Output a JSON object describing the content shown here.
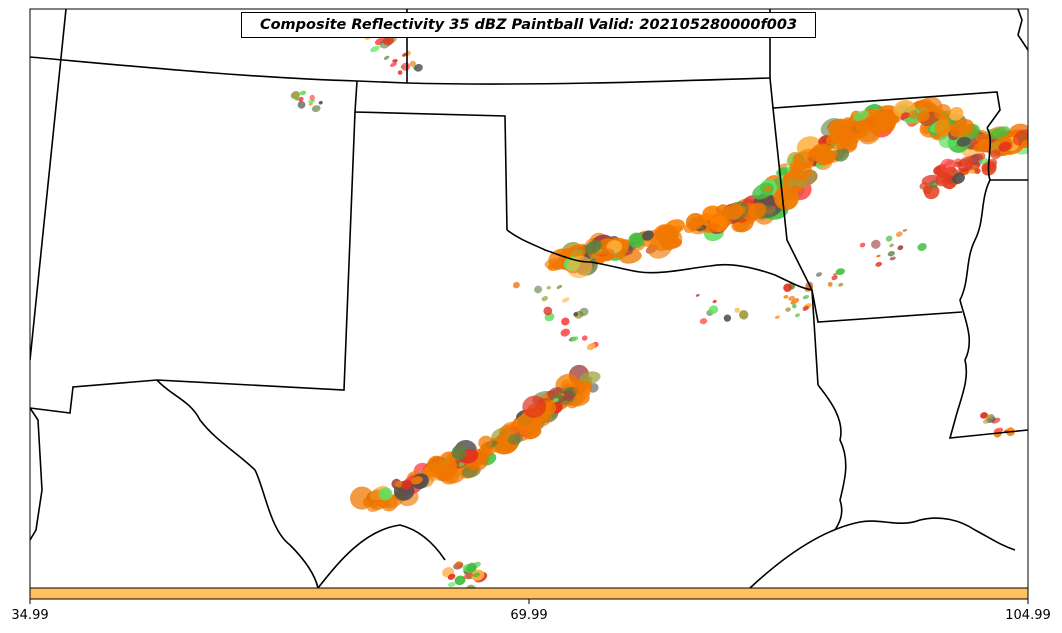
{
  "title": "Composite Reflectivity 35 dBZ Paintball Valid: 202105280000f003",
  "colorbar": {
    "color": "#ffc060",
    "ticks": [
      "34.99",
      "69.99",
      "104.99"
    ],
    "tick_values": [
      34.99,
      69.99,
      104.99
    ],
    "range": [
      34.99,
      104.99
    ]
  },
  "paintball_colors": [
    "#ff8000",
    "#f07000",
    "#e03020",
    "#ff4040",
    "#ffb040",
    "#a0a040",
    "#608040",
    "#40c040",
    "#60e060",
    "#505050",
    "#a04040"
  ],
  "map_features": [
    "state-borders",
    "coastline",
    "rivers"
  ]
}
